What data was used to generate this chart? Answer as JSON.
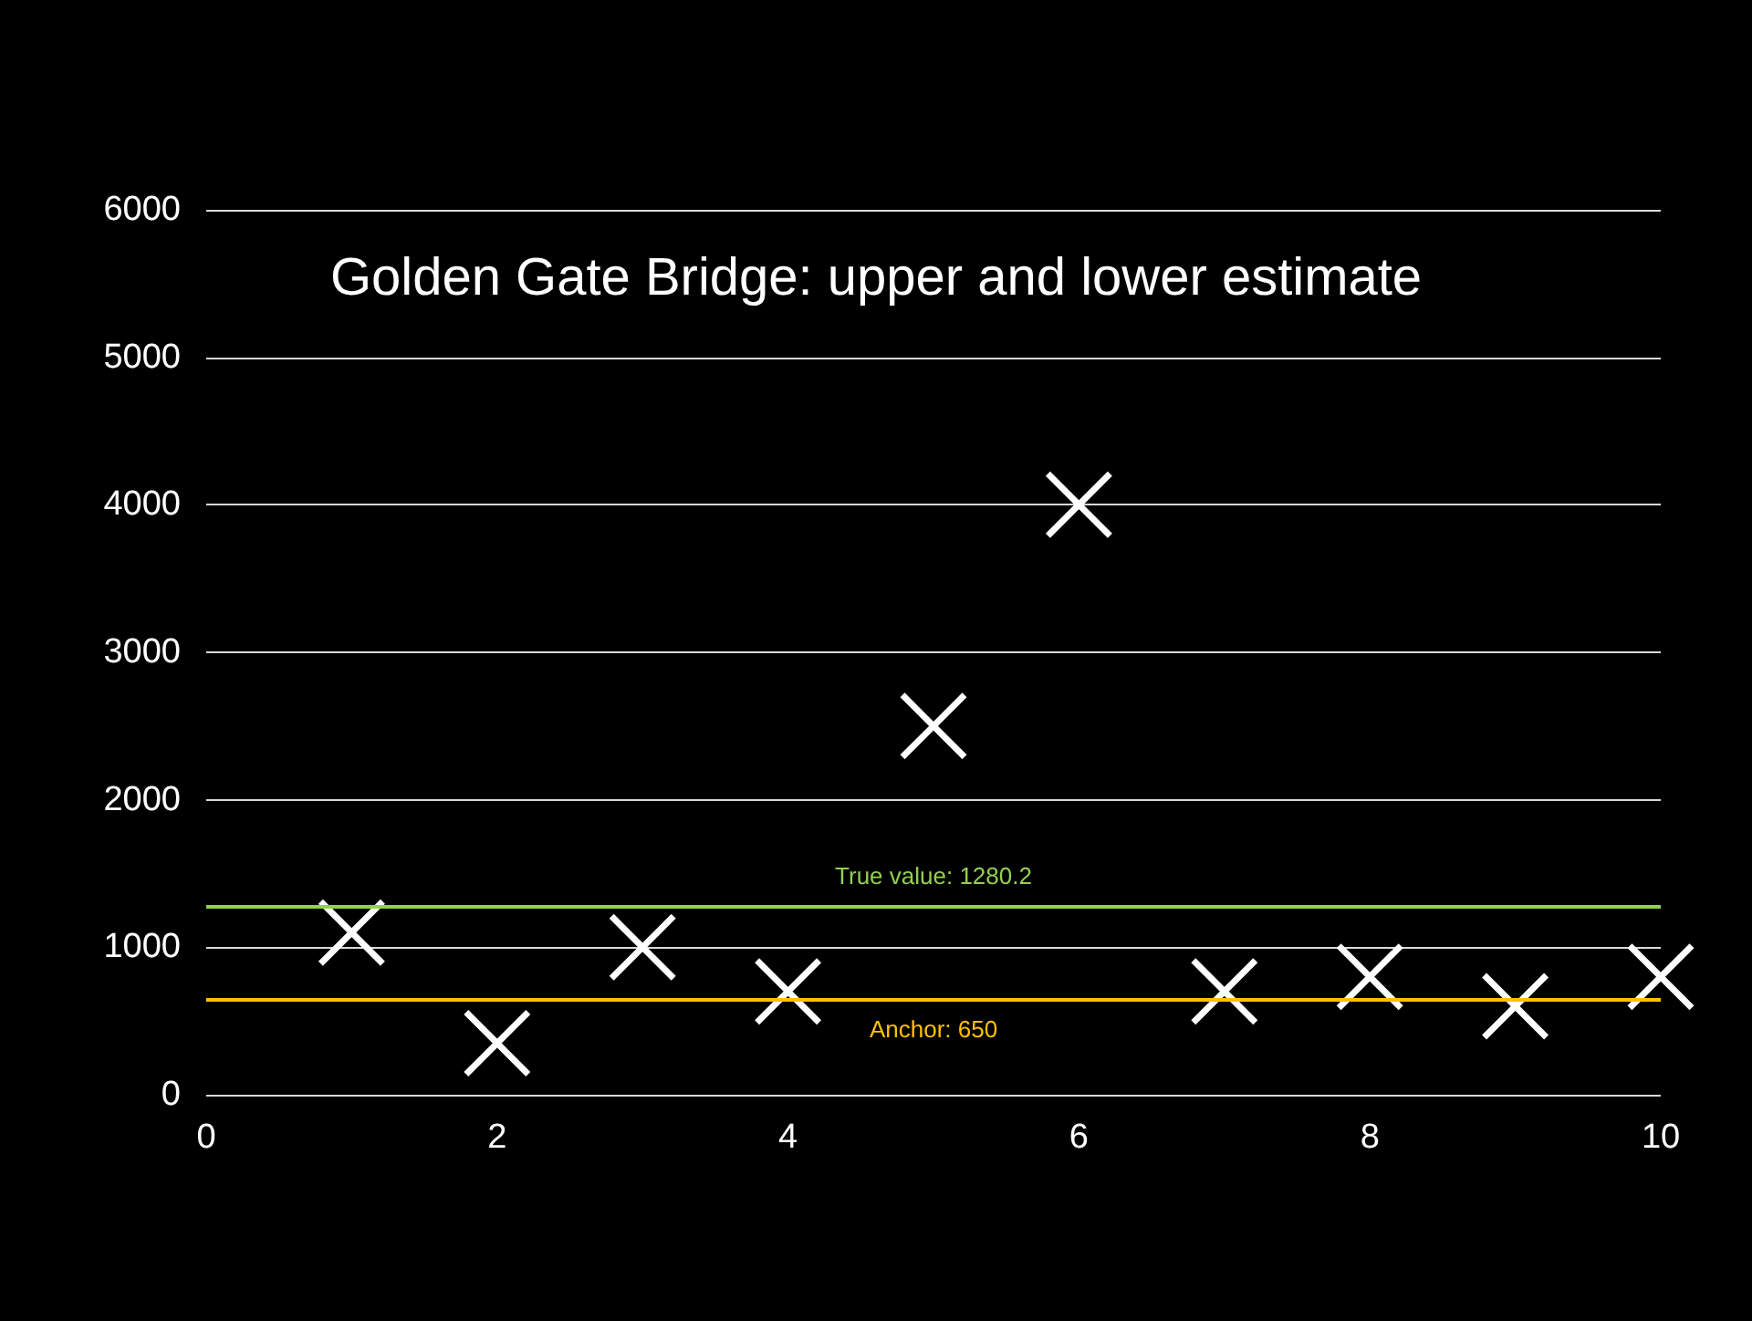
{
  "chart_data": {
    "type": "scatter",
    "title": "Golden Gate Bridge: upper and lower estimate",
    "x": [
      1,
      2,
      3,
      4,
      5,
      6,
      7,
      8,
      9,
      10
    ],
    "series": [
      {
        "color": "#ffffff",
        "values": [
          1100,
          350,
          1000,
          700,
          2500,
          4000,
          700,
          800,
          600,
          800
        ]
      }
    ],
    "marker": "cross",
    "grid": "y",
    "xlim": [
      0,
      10
    ],
    "xticks": [
      0,
      2,
      4,
      6,
      8,
      10
    ],
    "ylim": [
      0,
      6000
    ],
    "yticks": [
      0,
      1000,
      2000,
      3000,
      4000,
      5000,
      6000
    ],
    "ref_lines": [
      {
        "axis": "y",
        "value": 1280.2,
        "label": "True value: 1280.2",
        "color": "#92d050"
      },
      {
        "axis": "y",
        "value": 650,
        "label": "Anchor: 650",
        "color": "#ffc000"
      }
    ]
  }
}
